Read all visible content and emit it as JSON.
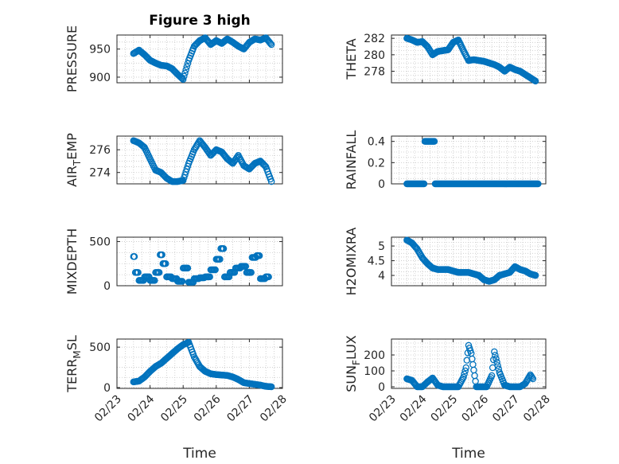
{
  "title": "Figure 3 high",
  "x_axis_label": "Time",
  "x_ticks": [
    "02/23",
    "02/24",
    "02/25",
    "02/26",
    "02/27",
    "02/28"
  ],
  "colors": {
    "marker": "#0072BD",
    "axis": "#262626",
    "grid": "#c8c8c8"
  },
  "chart_data": [
    {
      "type": "scatter",
      "ylabel": "PRESSURE",
      "ylim": [
        890,
        975
      ],
      "yticks": [
        900,
        950
      ],
      "x": [
        "02/23 12:00",
        "02/23 16:00",
        "02/23 20:00",
        "02/24 00:00",
        "02/24 04:00",
        "02/24 08:00",
        "02/24 12:00",
        "02/24 16:00",
        "02/24 20:00",
        "02/25 00:00",
        "02/25 04:00",
        "02/25 08:00",
        "02/25 12:00",
        "02/25 16:00",
        "02/25 20:00",
        "02/26 00:00",
        "02/26 04:00",
        "02/26 08:00",
        "02/26 12:00",
        "02/26 16:00",
        "02/26 20:00",
        "02/27 00:00",
        "02/27 04:00",
        "02/27 08:00",
        "02/27 12:00",
        "02/27 16:00"
      ],
      "y": [
        942,
        948,
        940,
        930,
        925,
        921,
        920,
        915,
        905,
        896,
        930,
        955,
        965,
        970,
        958,
        965,
        960,
        968,
        962,
        955,
        950,
        962,
        968,
        966,
        970,
        958
      ]
    },
    {
      "type": "scatter",
      "ylabel": "THETA",
      "ylim": [
        276.6,
        282.4
      ],
      "yticks": [
        278,
        280,
        282
      ],
      "x": [
        "02/23 12:00",
        "02/23 16:00",
        "02/23 20:00",
        "02/24 00:00",
        "02/24 04:00",
        "02/24 08:00",
        "02/24 12:00",
        "02/24 16:00",
        "02/24 20:00",
        "02/25 00:00",
        "02/25 04:00",
        "02/25 08:00",
        "02/25 12:00",
        "02/25 16:00",
        "02/25 20:00",
        "02/26 00:00",
        "02/26 04:00",
        "02/26 08:00",
        "02/26 12:00",
        "02/26 16:00",
        "02/26 20:00",
        "02/27 00:00",
        "02/27 04:00",
        "02/27 08:00",
        "02/27 12:00",
        "02/27 16:00"
      ],
      "y": [
        282,
        281.8,
        281.5,
        281.6,
        281,
        280,
        280.4,
        280.5,
        280.6,
        281.5,
        281.8,
        280.5,
        279.3,
        279.4,
        279.3,
        279.2,
        279,
        278.8,
        278.5,
        278,
        278.5,
        278.2,
        278,
        277.6,
        277.2,
        276.8
      ]
    },
    {
      "type": "scatter",
      "ylabel": "AIR_TEMP",
      "ylim": [
        273,
        277.2
      ],
      "yticks": [
        274,
        276
      ],
      "x": [
        "02/23 12:00",
        "02/23 16:00",
        "02/23 20:00",
        "02/24 00:00",
        "02/24 04:00",
        "02/24 08:00",
        "02/24 12:00",
        "02/24 16:00",
        "02/24 20:00",
        "02/25 00:00",
        "02/25 04:00",
        "02/25 08:00",
        "02/25 12:00",
        "02/25 16:00",
        "02/25 20:00",
        "02/26 00:00",
        "02/26 04:00",
        "02/26 08:00",
        "02/26 12:00",
        "02/26 16:00",
        "02/26 20:00",
        "02/27 00:00",
        "02/27 04:00",
        "02/27 08:00",
        "02/27 12:00",
        "02/27 16:00"
      ],
      "y": [
        276.8,
        276.6,
        276.2,
        275.2,
        274.2,
        274,
        273.5,
        273.2,
        273.2,
        273.3,
        274.8,
        276,
        276.8,
        276.2,
        275.5,
        276,
        275.8,
        275.2,
        274.8,
        275.5,
        274.6,
        274.3,
        274.8,
        275,
        274.5,
        273.2
      ]
    },
    {
      "type": "scatter",
      "ylabel": "RAINFALL",
      "ylim": [
        0,
        0.45
      ],
      "yticks": [
        0,
        0.2,
        0.4
      ],
      "x": [
        "02/23 12:00",
        "02/23 18:00",
        "02/24 00:00",
        "02/24 04:00",
        "02/24 06:00",
        "02/24 08:00",
        "02/24 12:00",
        "02/24 18:00",
        "02/25 00:00",
        "02/25 06:00",
        "02/25 12:00",
        "02/25 18:00",
        "02/26 00:00",
        "02/26 06:00",
        "02/26 12:00",
        "02/26 18:00",
        "02/27 00:00",
        "02/27 06:00",
        "02/27 12:00",
        "02/27 18:00"
      ],
      "y": [
        0,
        0,
        0,
        0.4,
        0.4,
        0.4,
        0,
        0,
        0,
        0,
        0,
        0,
        0,
        0,
        0,
        0,
        0,
        0,
        0,
        0
      ]
    },
    {
      "type": "scatter",
      "ylabel": "MIXDEPTH",
      "ylim": [
        0,
        550
      ],
      "yticks": [
        0,
        500
      ],
      "x": [
        "02/23 12:00",
        "02/23 14:00",
        "02/23 18:00",
        "02/23 22:00",
        "02/24 02:00",
        "02/24 06:00",
        "02/24 08:00",
        "02/24 10:00",
        "02/24 14:00",
        "02/24 18:00",
        "02/24 22:00",
        "02/25 02:00",
        "02/25 06:00",
        "02/25 10:00",
        "02/25 14:00",
        "02/25 18:00",
        "02/25 22:00",
        "02/26 02:00",
        "02/26 04:00",
        "02/26 08:00",
        "02/26 12:00",
        "02/26 16:00",
        "02/26 20:00",
        "02/27 00:00",
        "02/27 04:00",
        "02/27 06:00",
        "02/27 10:00",
        "02/27 14:00"
      ],
      "y": [
        330,
        150,
        60,
        100,
        60,
        150,
        350,
        250,
        100,
        80,
        50,
        200,
        40,
        80,
        90,
        100,
        180,
        300,
        420,
        100,
        150,
        200,
        220,
        150,
        320,
        340,
        80,
        100
      ]
    },
    {
      "type": "scatter",
      "ylabel": "H2OMIXRA",
      "ylim": [
        3.65,
        5.3
      ],
      "yticks": [
        4,
        4.5,
        5
      ],
      "x": [
        "02/23 12:00",
        "02/23 16:00",
        "02/23 20:00",
        "02/24 00:00",
        "02/24 04:00",
        "02/24 08:00",
        "02/24 12:00",
        "02/24 16:00",
        "02/24 20:00",
        "02/25 00:00",
        "02/25 04:00",
        "02/25 08:00",
        "02/25 12:00",
        "02/25 16:00",
        "02/25 20:00",
        "02/26 00:00",
        "02/26 04:00",
        "02/26 08:00",
        "02/26 12:00",
        "02/26 16:00",
        "02/26 20:00",
        "02/27 00:00",
        "02/27 04:00",
        "02/27 08:00",
        "02/27 12:00",
        "02/27 16:00"
      ],
      "y": [
        5.2,
        5.1,
        4.9,
        4.6,
        4.4,
        4.25,
        4.2,
        4.2,
        4.2,
        4.15,
        4.1,
        4.1,
        4.1,
        4.05,
        4.0,
        3.85,
        3.8,
        3.85,
        4.0,
        4.05,
        4.1,
        4.3,
        4.2,
        4.15,
        4.05,
        4.0
      ]
    },
    {
      "type": "scatter",
      "ylabel": "TERR_MSL",
      "ylim": [
        -10,
        600
      ],
      "yticks": [
        0,
        500
      ],
      "x": [
        "02/23 12:00",
        "02/23 16:00",
        "02/23 20:00",
        "02/24 00:00",
        "02/24 04:00",
        "02/24 08:00",
        "02/24 12:00",
        "02/24 16:00",
        "02/24 20:00",
        "02/25 00:00",
        "02/25 04:00",
        "02/25 08:00",
        "02/25 12:00",
        "02/25 16:00",
        "02/25 20:00",
        "02/26 00:00",
        "02/26 04:00",
        "02/26 08:00",
        "02/26 12:00",
        "02/26 16:00",
        "02/26 20:00",
        "02/27 00:00",
        "02/27 04:00",
        "02/27 08:00",
        "02/27 12:00",
        "02/27 16:00"
      ],
      "y": [
        70,
        80,
        130,
        200,
        260,
        300,
        360,
        420,
        480,
        530,
        560,
        380,
        260,
        200,
        170,
        160,
        155,
        150,
        130,
        100,
        60,
        50,
        40,
        30,
        15,
        10
      ]
    },
    {
      "type": "scatter",
      "ylabel": "SUN_FLUX",
      "ylim": [
        -10,
        300
      ],
      "yticks": [
        0,
        100,
        200
      ],
      "x": [
        "02/23 12:00",
        "02/23 16:00",
        "02/23 20:00",
        "02/24 00:00",
        "02/24 04:00",
        "02/24 08:00",
        "02/24 12:00",
        "02/24 16:00",
        "02/24 20:00",
        "02/25 00:00",
        "02/25 04:00",
        "02/25 08:00",
        "02/25 10:00",
        "02/25 12:00",
        "02/25 14:00",
        "02/25 18:00",
        "02/25 22:00",
        "02/26 02:00",
        "02/26 06:00",
        "02/26 08:00",
        "02/26 12:00",
        "02/26 16:00",
        "02/26 20:00",
        "02/27 00:00",
        "02/27 04:00",
        "02/27 08:00",
        "02/27 12:00",
        "02/27 14:00"
      ],
      "y": [
        50,
        40,
        0,
        0,
        30,
        55,
        10,
        0,
        0,
        0,
        0,
        60,
        120,
        260,
        210,
        0,
        0,
        0,
        70,
        220,
        90,
        10,
        0,
        0,
        0,
        20,
        75,
        50
      ]
    }
  ]
}
